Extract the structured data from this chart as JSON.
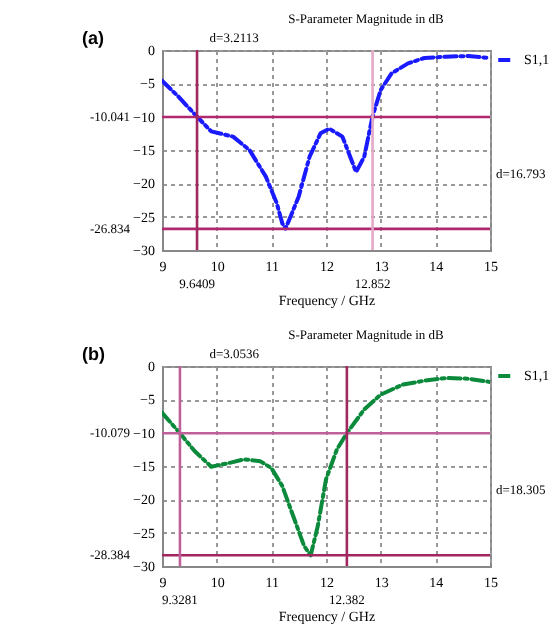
{
  "chart_data": [
    {
      "type": "line",
      "title": "S-Parameter Magnitude in dB",
      "xlabel": "Frequency / GHz",
      "annotations": [
        "(a)",
        "d=3.2113",
        "d=16.793"
      ],
      "xlim": [
        9,
        15
      ],
      "xticks": [
        9,
        10,
        11,
        12,
        13,
        14,
        15
      ],
      "ylim": [
        -30,
        0
      ],
      "yticks": [
        -30,
        -25,
        -20,
        -15,
        -10,
        -5,
        0
      ],
      "grid": true,
      "legend": "top right",
      "line_style": "dashed",
      "series": [
        {
          "name": "S1,1",
          "color": "#1a1aff",
          "x": [
            9,
            9.3,
            9.64,
            9.9,
            10.1,
            10.3,
            10.6,
            10.9,
            11.1,
            11.2,
            11.26,
            11.5,
            11.7,
            11.9,
            12.06,
            12.3,
            12.55,
            12.7,
            12.85,
            13.0,
            13.2,
            13.5,
            13.8,
            14.2,
            14.6,
            15
          ],
          "values": [
            -4.6,
            -7,
            -10,
            -12.2,
            -12.6,
            -13,
            -15,
            -19,
            -23,
            -26,
            -26.8,
            -22,
            -16,
            -12.5,
            -11.8,
            -13,
            -18.3,
            -16,
            -10,
            -6,
            -3.5,
            -2,
            -1.2,
            -1,
            -0.9,
            -1.2
          ]
        }
      ],
      "ref_lines": [
        {
          "axis": "y",
          "value": -10.041,
          "label": "-10.041",
          "color": "#b0286e"
        },
        {
          "axis": "y",
          "value": -26.834,
          "label": "-26.834",
          "color": "#b0286e"
        },
        {
          "axis": "x",
          "value": 9.6409,
          "label": "9.6409",
          "color": "#a0285e"
        },
        {
          "axis": "x",
          "value": 12.852,
          "label": "12.852",
          "color": "#e4a8c8"
        }
      ]
    },
    {
      "type": "line",
      "title": "S-Parameter Magnitude in dB",
      "xlabel": "Frequency / GHz",
      "annotations": [
        "(b)",
        "d=3.0536",
        "d=18.305"
      ],
      "xlim": [
        9,
        15
      ],
      "xticks": [
        9,
        10,
        11,
        12,
        13,
        14,
        15
      ],
      "ylim": [
        -30,
        0
      ],
      "yticks": [
        -30,
        -25,
        -20,
        -15,
        -10,
        -5,
        0
      ],
      "grid": true,
      "legend": "top right",
      "line_style": "dashed",
      "series": [
        {
          "name": "S1,1",
          "color": "#0a8a3a",
          "x": [
            9,
            9.33,
            9.6,
            9.9,
            10.2,
            10.5,
            10.8,
            11.0,
            11.2,
            11.4,
            11.6,
            11.72,
            11.85,
            12.0,
            12.2,
            12.38,
            12.7,
            13.0,
            13.4,
            13.8,
            14.2,
            14.6,
            15
          ],
          "values": [
            -7,
            -10.1,
            -12.8,
            -15.1,
            -14.6,
            -14,
            -14.3,
            -15.3,
            -18,
            -22.5,
            -27,
            -28.4,
            -24,
            -17,
            -12.5,
            -10.1,
            -6.5,
            -4.3,
            -2.8,
            -2.2,
            -1.8,
            -1.9,
            -2.4
          ]
        }
      ],
      "ref_lines": [
        {
          "axis": "y",
          "value": -10.079,
          "label": "-10.079",
          "color": "#c0609a"
        },
        {
          "axis": "y",
          "value": -28.384,
          "label": "-28.384",
          "color": "#a0285e"
        },
        {
          "axis": "x",
          "value": 9.3281,
          "label": "9.3281",
          "color": "#c0609a"
        },
        {
          "axis": "x",
          "value": 12.382,
          "label": "12.382",
          "color": "#a0285e"
        }
      ]
    }
  ]
}
